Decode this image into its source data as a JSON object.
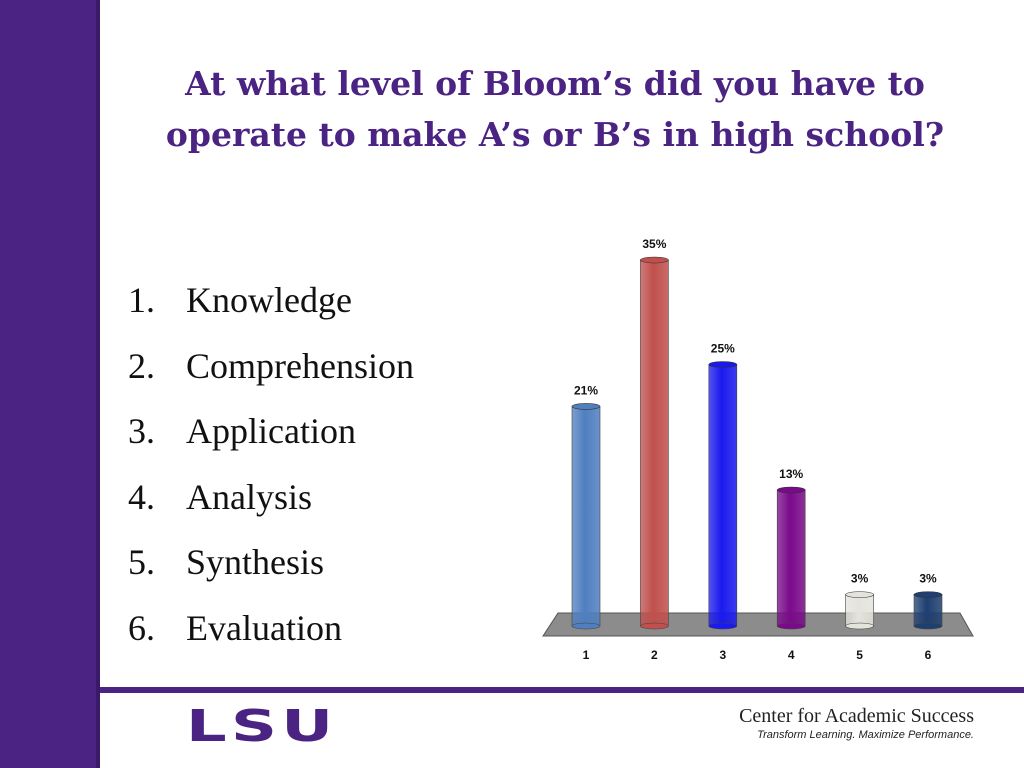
{
  "slide": {
    "title_line1": "At what level of Bloom’s did you have to",
    "title_line2": "operate to make A’s or B’s in high school?",
    "options": [
      {
        "number": "1.",
        "label": "Knowledge"
      },
      {
        "number": "2.",
        "label": "Comprehension"
      },
      {
        "number": "3.",
        "label": "Application"
      },
      {
        "number": "4.",
        "label": "Analysis"
      },
      {
        "number": "5.",
        "label": "Synthesis"
      },
      {
        "number": "6.",
        "label": "Evaluation"
      }
    ]
  },
  "footer": {
    "logo_text": "LSU",
    "brand_name": "Center for Academic Success",
    "tagline": "Transform Learning. Maximize Performance.",
    "accent_color": "#4b2383"
  },
  "chart_data": {
    "type": "bar",
    "categories": [
      "1",
      "2",
      "3",
      "4",
      "5",
      "6"
    ],
    "values": [
      21,
      35,
      25,
      13,
      3,
      3
    ],
    "data_labels": [
      "21%",
      "35%",
      "25%",
      "13%",
      "3%",
      "3%"
    ],
    "colors": [
      "#4f7fbf",
      "#c0504d",
      "#1a1aee",
      "#7a0a8a",
      "#e4e4dc",
      "#1f3f70"
    ],
    "ylim": [
      0,
      35
    ],
    "grid": false,
    "legend": "none",
    "title": "",
    "xlabel": "",
    "ylabel": ""
  }
}
